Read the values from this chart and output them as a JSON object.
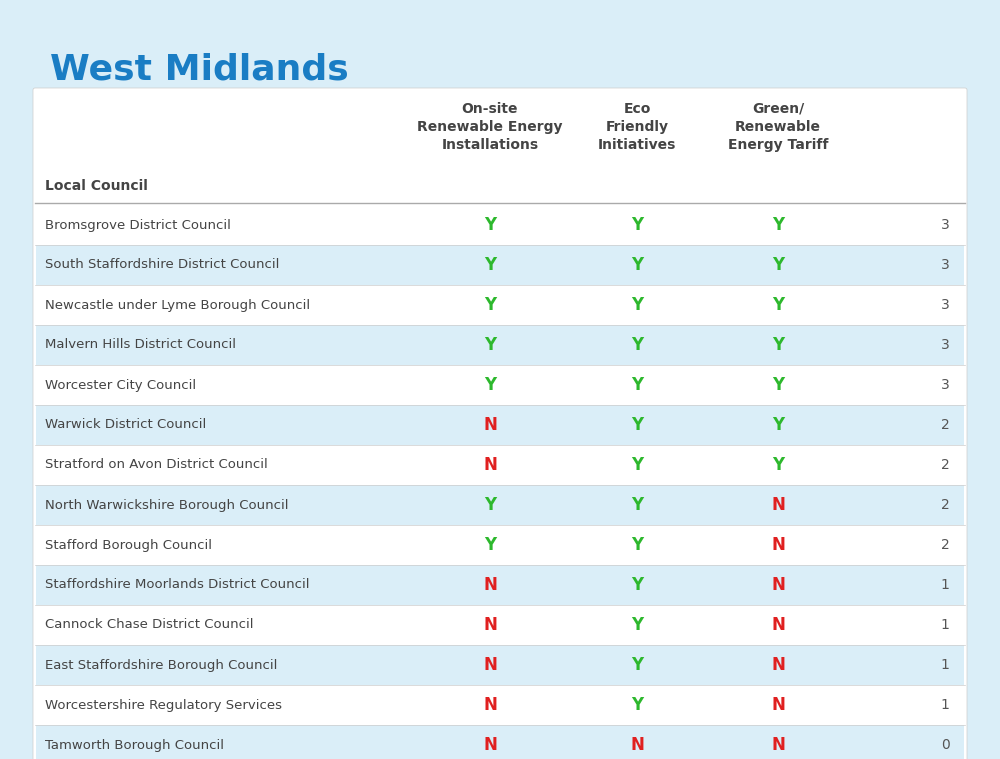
{
  "title": "West Midlands",
  "title_color": "#1a7dc4",
  "title_fontsize": 26,
  "background_color": "#daeef8",
  "header_row": [
    "Local Council",
    "On-site\nRenewable Energy\nInstallations",
    "Eco\nFriendly\nInitiatives",
    "Green/\nRenewable\nEnergy Tariff",
    ""
  ],
  "rows": [
    [
      "Bromsgrove District Council",
      "Y",
      "Y",
      "Y",
      "3"
    ],
    [
      "South Staffordshire District Council",
      "Y",
      "Y",
      "Y",
      "3"
    ],
    [
      "Newcastle under Lyme Borough Council",
      "Y",
      "Y",
      "Y",
      "3"
    ],
    [
      "Malvern Hills District Council",
      "Y",
      "Y",
      "Y",
      "3"
    ],
    [
      "Worcester City Council",
      "Y",
      "Y",
      "Y",
      "3"
    ],
    [
      "Warwick District Council",
      "N",
      "Y",
      "Y",
      "2"
    ],
    [
      "Stratford on Avon District Council",
      "N",
      "Y",
      "Y",
      "2"
    ],
    [
      "North Warwickshire Borough Council",
      "Y",
      "Y",
      "N",
      "2"
    ],
    [
      "Stafford Borough Council",
      "Y",
      "Y",
      "N",
      "2"
    ],
    [
      "Staffordshire Moorlands District Council",
      "N",
      "Y",
      "N",
      "1"
    ],
    [
      "Cannock Chase District Council",
      "N",
      "Y",
      "N",
      "1"
    ],
    [
      "East Staffordshire Borough Council",
      "N",
      "Y",
      "N",
      "1"
    ],
    [
      "Worcestershire Regulatory Services",
      "N",
      "Y",
      "N",
      "1"
    ],
    [
      "Tamworth Borough Council",
      "N",
      "N",
      "N",
      "0"
    ]
  ],
  "green_color": "#2db82d",
  "red_color": "#e02020",
  "header_text_color": "#444444",
  "row_text_color": "#444444",
  "score_text_color": "#555555",
  "stripe_colors": [
    "#ffffff",
    "#daeef8"
  ],
  "table_border_color": "#bbbbbb",
  "row_sep_color": "#cccccc"
}
